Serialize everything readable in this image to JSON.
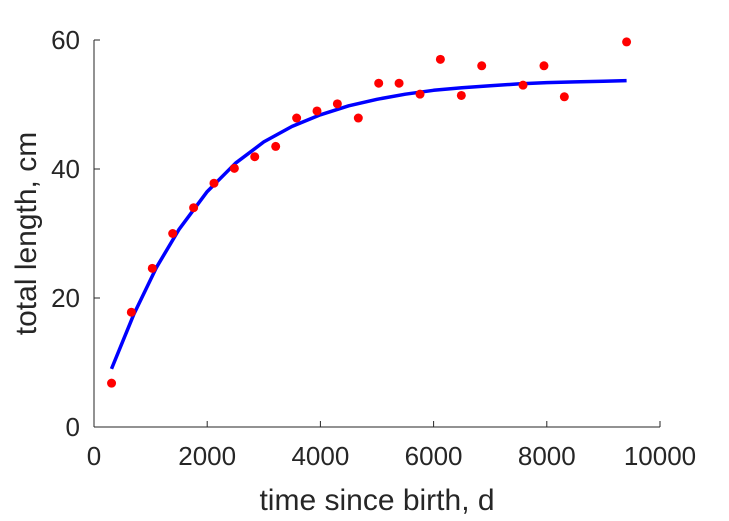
{
  "chart_data": {
    "type": "scatter",
    "title": "",
    "xlabel": "time since birth, d",
    "ylabel": "total length, cm",
    "xlim": [
      0,
      10000
    ],
    "ylim": [
      0,
      60
    ],
    "xticks": [
      0,
      2000,
      4000,
      6000,
      8000,
      10000
    ],
    "yticks": [
      0,
      20,
      40,
      60
    ],
    "xtick_labels": [
      "0",
      "2000",
      "4000",
      "6000",
      "8000",
      "10000"
    ],
    "ytick_labels": [
      "0",
      "20",
      "40",
      "60"
    ],
    "grid": false,
    "legend": "none",
    "series": [
      {
        "kind": "points",
        "color": "#ff0000",
        "x": [
          310,
          660,
          1030,
          1390,
          1760,
          2120,
          2480,
          2840,
          3210,
          3580,
          3940,
          4300,
          4670,
          5030,
          5390,
          5760,
          6120,
          6490,
          6850,
          7580,
          7950,
          8310,
          9410
        ],
        "y": [
          6.8,
          17.8,
          24.6,
          30.0,
          34.0,
          37.8,
          40.1,
          41.9,
          43.5,
          47.9,
          49.0,
          50.1,
          47.9,
          53.3,
          53.3,
          51.6,
          57.0,
          51.4,
          56.0,
          53.0,
          56.0,
          51.2,
          59.7
        ]
      },
      {
        "kind": "line",
        "color": "#0000ff",
        "x": [
          310,
          700,
          1100,
          1500,
          2000,
          2500,
          3000,
          3500,
          4000,
          4500,
          5000,
          5500,
          6000,
          6500,
          7000,
          7500,
          8000,
          8500,
          9000,
          9410
        ],
        "y": [
          9.0,
          17.4,
          24.7,
          30.6,
          36.5,
          40.9,
          44.2,
          46.6,
          48.4,
          49.8,
          50.8,
          51.6,
          52.2,
          52.6,
          52.9,
          53.2,
          53.4,
          53.5,
          53.6,
          53.7
        ]
      }
    ]
  }
}
